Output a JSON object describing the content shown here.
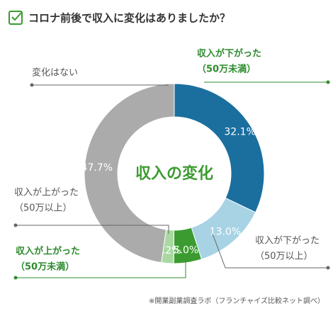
{
  "chart_data": {
    "type": "donut",
    "title": "コロナ前後で収入に変化はありましたか？",
    "center_label": "収入の変化",
    "source": "※開業副業調査ラボ（フランチャイズ比較ネット調べ）",
    "categories": [
      [
        "収入が下がった",
        "（50万未満）"
      ],
      [
        "収入が下がった",
        "（50万以上）"
      ],
      [
        "収入が上がった",
        "（50万未満）"
      ],
      [
        "収入が上がった",
        "（50万以上）"
      ],
      [
        "変化はない"
      ]
    ],
    "values": [
      32.1,
      13.0,
      5.0,
      2.2,
      47.7
    ],
    "value_labels": [
      "32.1%",
      "13.0%",
      "5.0%",
      "2.2%",
      "47.7%"
    ],
    "colors": [
      "#1b6f9f",
      "#a7d3e5",
      "#3b9b30",
      "#a9d9a1",
      "#ababab"
    ]
  }
}
